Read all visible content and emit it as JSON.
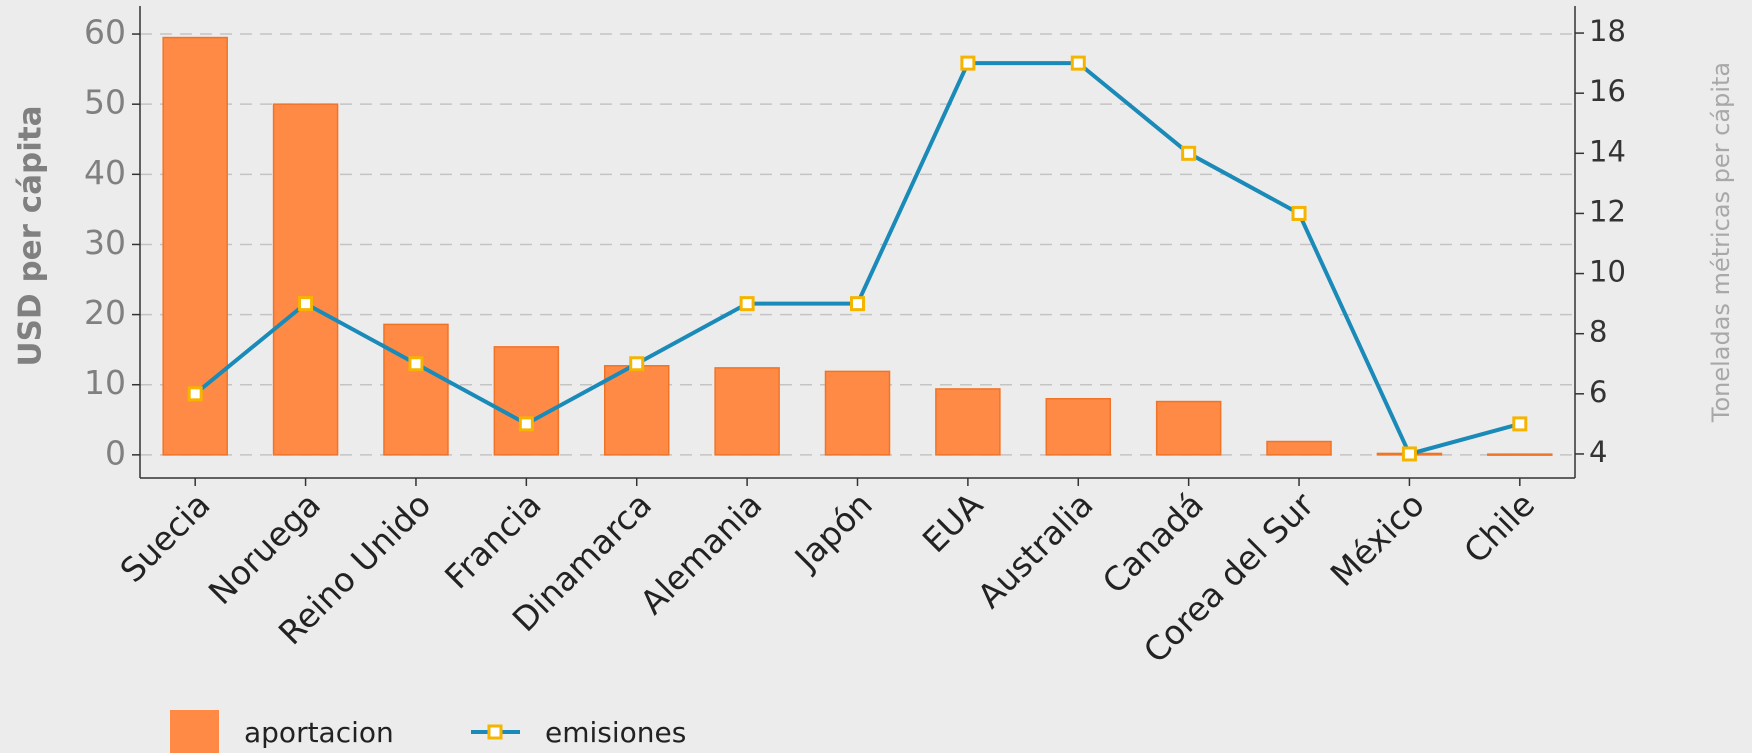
{
  "chart_data": {
    "type": "bar-line",
    "categories": [
      "Suecia",
      "Noruega",
      "Reino Unido",
      "Francia",
      "Dinamarca",
      "Alemania",
      "Japón",
      "EUA",
      "Australia",
      "Canadá",
      "Corea del Sur",
      "México",
      "Chile"
    ],
    "series": [
      {
        "name": "aportacion",
        "type": "bar",
        "color": "#ff8a45",
        "values": [
          59.5,
          50,
          18.6,
          15.4,
          12.7,
          12.4,
          11.9,
          9.4,
          8.0,
          7.6,
          1.9,
          0.2,
          0.1
        ]
      },
      {
        "name": "emisiones",
        "type": "line",
        "axis": "y2",
        "color": "#1a8ab8",
        "marker_color": "#f5b400",
        "values": [
          6,
          9,
          7,
          5,
          7,
          9,
          9,
          17,
          17,
          14,
          12,
          4,
          5
        ]
      }
    ],
    "ylabel": "USD per cápita",
    "y2label": "Toneladas métricas per cápita",
    "ylim": [
      -3.3,
      64
    ],
    "yticks": [
      0,
      10,
      20,
      30,
      40,
      50,
      60
    ],
    "y2lim": [
      3.2,
      18.9
    ],
    "y2ticks": [
      4,
      6,
      8,
      10,
      12,
      14,
      16,
      18
    ],
    "grid": true,
    "legend": "bottom"
  }
}
